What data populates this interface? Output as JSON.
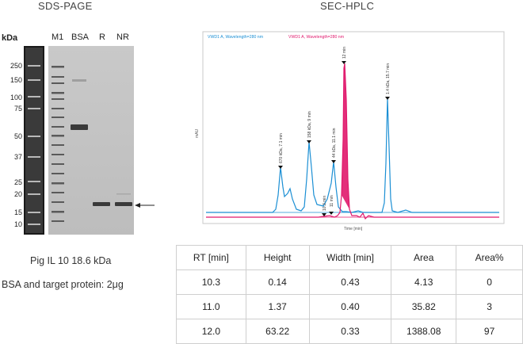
{
  "sds_page": {
    "title": "SDS-PAGE",
    "unit_label": "kDa",
    "ladder_labels": [
      "250",
      "150",
      "100",
      "75",
      "50",
      "37",
      "25",
      "20",
      "15",
      "10"
    ],
    "lane_labels": [
      "M1",
      "BSA",
      "R",
      "NR"
    ],
    "caption_line1": "Pig IL 10 18.6 kDa",
    "caption_line2": "BSA and target protein: 2μg"
  },
  "sec_hplc": {
    "title": "SEC-HPLC",
    "legend": {
      "blue_series": "VWD1 A, Wavelength=280 nm",
      "red_series": "VWD1 A, Wavelength=280 nm"
    },
    "y_axis_label": "mAU",
    "x_axis_label": "Time [min]",
    "peak_labels": [
      "670 kDa, 7.1 min",
      "158 kDa, 9 min",
      "44 kDa, 11.1 min",
      "12 min",
      "1.4 kDa, 15.7 min",
      "10.3 min",
      "11 min"
    ],
    "colors": {
      "blue": "#1b8fd4",
      "red": "#e0186c",
      "box": "#c8c8c8"
    }
  },
  "results_table": {
    "headers": [
      "RT [min]",
      "Height",
      "Width [min]",
      "Area",
      "Area%"
    ],
    "rows": [
      [
        "10.3",
        "0.14",
        "0.43",
        "4.13",
        "0"
      ],
      [
        "11.0",
        "1.37",
        "0.40",
        "35.82",
        "3"
      ],
      [
        "12.0",
        "63.22",
        "0.33",
        "1388.08",
        "97"
      ]
    ]
  }
}
